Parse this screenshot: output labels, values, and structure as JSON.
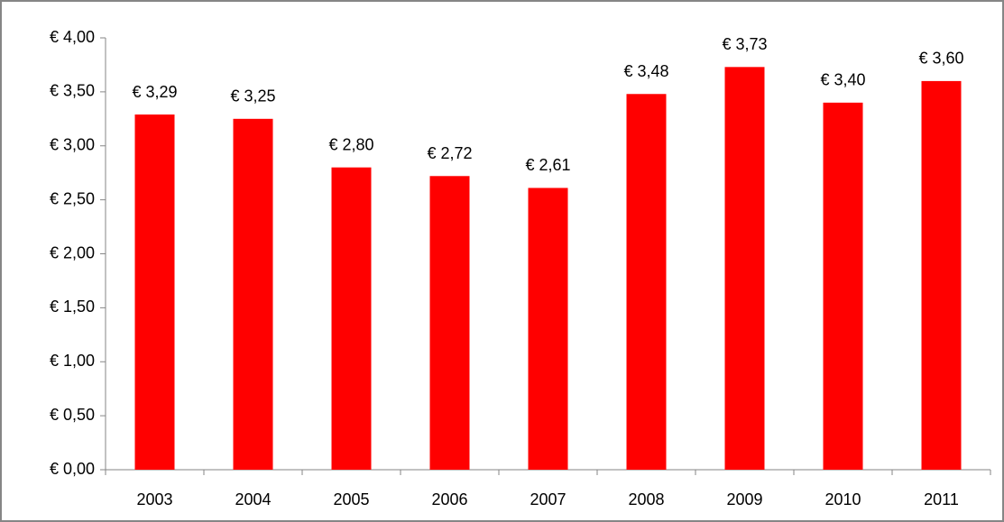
{
  "chart_data": {
    "type": "bar",
    "categories": [
      "2003",
      "2004",
      "2005",
      "2006",
      "2007",
      "2008",
      "2009",
      "2010",
      "2011"
    ],
    "values": [
      3.29,
      3.25,
      2.8,
      2.72,
      2.61,
      3.48,
      3.73,
      3.4,
      3.6
    ],
    "value_labels": [
      "€ 3,29",
      "€ 3,25",
      "€ 2,80",
      "€ 2,72",
      "€ 2,61",
      "€ 3,48",
      "€ 3,73",
      "€ 3,40",
      "€ 3,60"
    ],
    "color": "#ff0000",
    "ylim": [
      0,
      4
    ],
    "yticks": [
      {
        "value": 0,
        "label": "€ 0,00"
      },
      {
        "value": 0.5,
        "label": "€ 0,50"
      },
      {
        "value": 1,
        "label": "€ 1,00"
      },
      {
        "value": 1.5,
        "label": "€ 1,50"
      },
      {
        "value": 2,
        "label": "€ 2,00"
      },
      {
        "value": 2.5,
        "label": "€ 2,50"
      },
      {
        "value": 3,
        "label": "€ 3,00"
      },
      {
        "value": 3.5,
        "label": "€ 3,50"
      },
      {
        "value": 4,
        "label": "€ 4,00"
      }
    ],
    "grid": false
  }
}
